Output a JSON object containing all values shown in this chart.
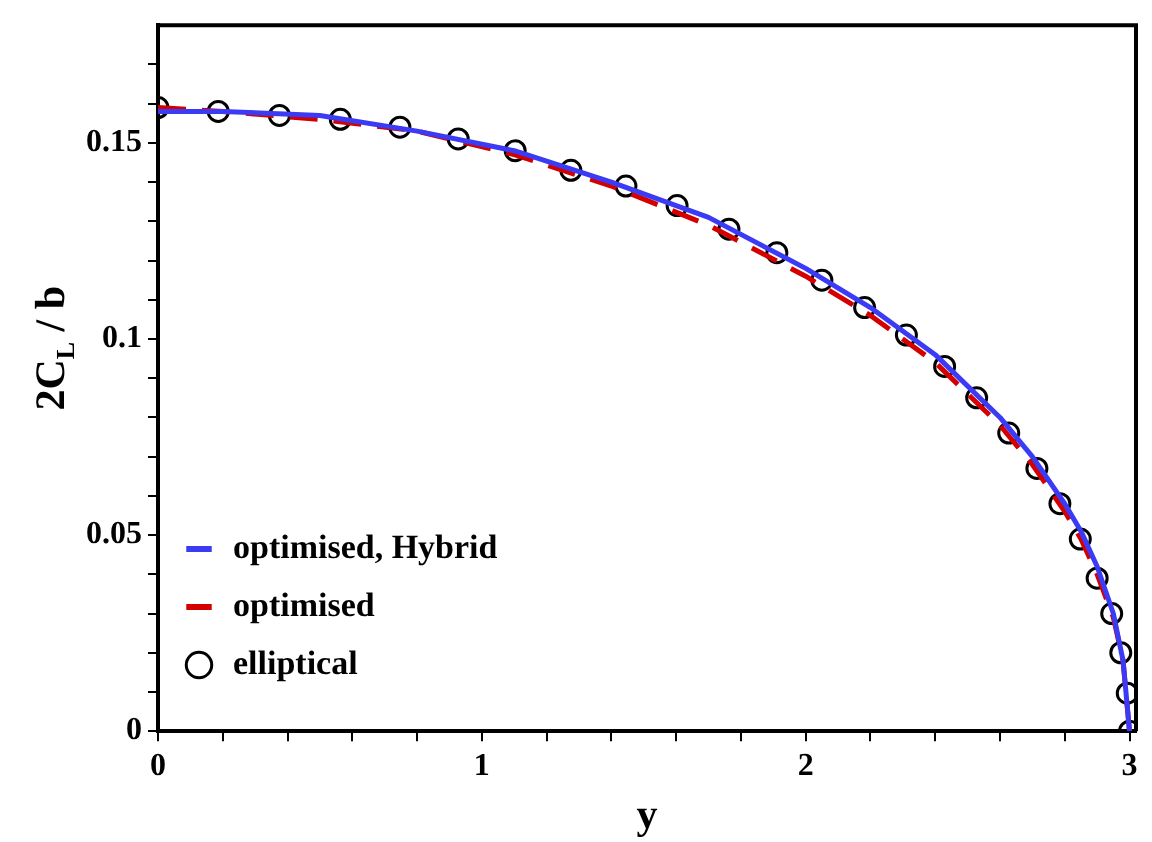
{
  "chart_data": {
    "type": "line",
    "xlabel": "y",
    "ylabel": "2C$_{L}$ / b",
    "xlim": [
      0,
      3.02
    ],
    "ylim": [
      0,
      0.18
    ],
    "xticks": [
      0,
      {
        "value": 0.2,
        "label": null
      },
      {
        "value": 0.4,
        "label": null
      },
      {
        "value": 0.6,
        "label": null
      },
      {
        "value": 0.8,
        "label": null
      },
      1,
      {
        "value": 1.2,
        "label": null
      },
      {
        "value": 1.4,
        "label": null
      },
      {
        "value": 1.6,
        "label": null
      },
      {
        "value": 1.8,
        "label": null
      },
      2,
      {
        "value": 2.2,
        "label": null
      },
      {
        "value": 2.4,
        "label": null
      },
      {
        "value": 2.6,
        "label": null
      },
      {
        "value": 2.8,
        "label": null
      },
      3
    ],
    "yticks": [
      0,
      {
        "value": 0.01,
        "label": null
      },
      {
        "value": 0.02,
        "label": null
      },
      {
        "value": 0.03,
        "label": null
      },
      {
        "value": 0.04,
        "label": null
      },
      0.05,
      {
        "value": 0.06,
        "label": null
      },
      {
        "value": 0.07,
        "label": null
      },
      {
        "value": 0.08,
        "label": null
      },
      {
        "value": 0.09,
        "label": null
      },
      0.1,
      {
        "value": 0.11,
        "label": null
      },
      {
        "value": 0.12,
        "label": null
      },
      {
        "value": 0.13,
        "label": null
      },
      {
        "value": 0.14,
        "label": null
      },
      0.15,
      {
        "value": 0.16,
        "label": null
      },
      {
        "value": 0.17,
        "label": null
      }
    ],
    "grid": false,
    "legend": "bottom left",
    "series": [
      {
        "name": "optimised, Hybrid",
        "color": "#3b3bf5",
        "line_style": "solid",
        "marker": "none",
        "x": [
          0,
          0.2,
          0.5,
          0.8,
          1.1,
          1.4,
          1.7,
          2.0,
          2.2,
          2.4,
          2.6,
          2.7,
          2.8,
          2.85,
          2.9,
          2.95,
          2.98,
          3.0
        ],
        "values": [
          0.158,
          0.158,
          0.157,
          0.153,
          0.148,
          0.14,
          0.131,
          0.118,
          0.108,
          0.096,
          0.08,
          0.07,
          0.058,
          0.051,
          0.042,
          0.03,
          0.018,
          0
        ]
      },
      {
        "name": "optimised",
        "color": "#d40000",
        "line_style": "dashed",
        "marker": "none",
        "x": [
          0,
          0.2,
          0.5,
          0.8,
          1.1,
          1.4,
          1.7,
          2.0,
          2.2,
          2.4,
          2.6,
          2.7,
          2.8,
          2.85,
          2.9,
          2.95,
          2.98,
          3.0
        ],
        "values": [
          0.159,
          0.158,
          0.156,
          0.153,
          0.147,
          0.139,
          0.129,
          0.116,
          0.106,
          0.094,
          0.078,
          0.068,
          0.056,
          0.049,
          0.04,
          0.029,
          0.018,
          0
        ]
      },
      {
        "name": "elliptical",
        "type": "scatter",
        "color": "#000000",
        "marker": "circle",
        "x": [
          0,
          0.186,
          0.375,
          0.563,
          0.747,
          0.927,
          1.103,
          1.275,
          1.445,
          1.603,
          1.763,
          1.911,
          2.05,
          2.182,
          2.311,
          2.429,
          2.528,
          2.627,
          2.714,
          2.785,
          2.848,
          2.9,
          2.945,
          2.973,
          2.993,
          3.0
        ],
        "values": [
          0.159,
          0.158,
          0.157,
          0.156,
          0.154,
          0.151,
          0.148,
          0.143,
          0.139,
          0.134,
          0.128,
          0.122,
          0.115,
          0.108,
          0.101,
          0.093,
          0.085,
          0.076,
          0.067,
          0.058,
          0.049,
          0.039,
          0.03,
          0.02,
          0.0097,
          0
        ]
      }
    ]
  }
}
